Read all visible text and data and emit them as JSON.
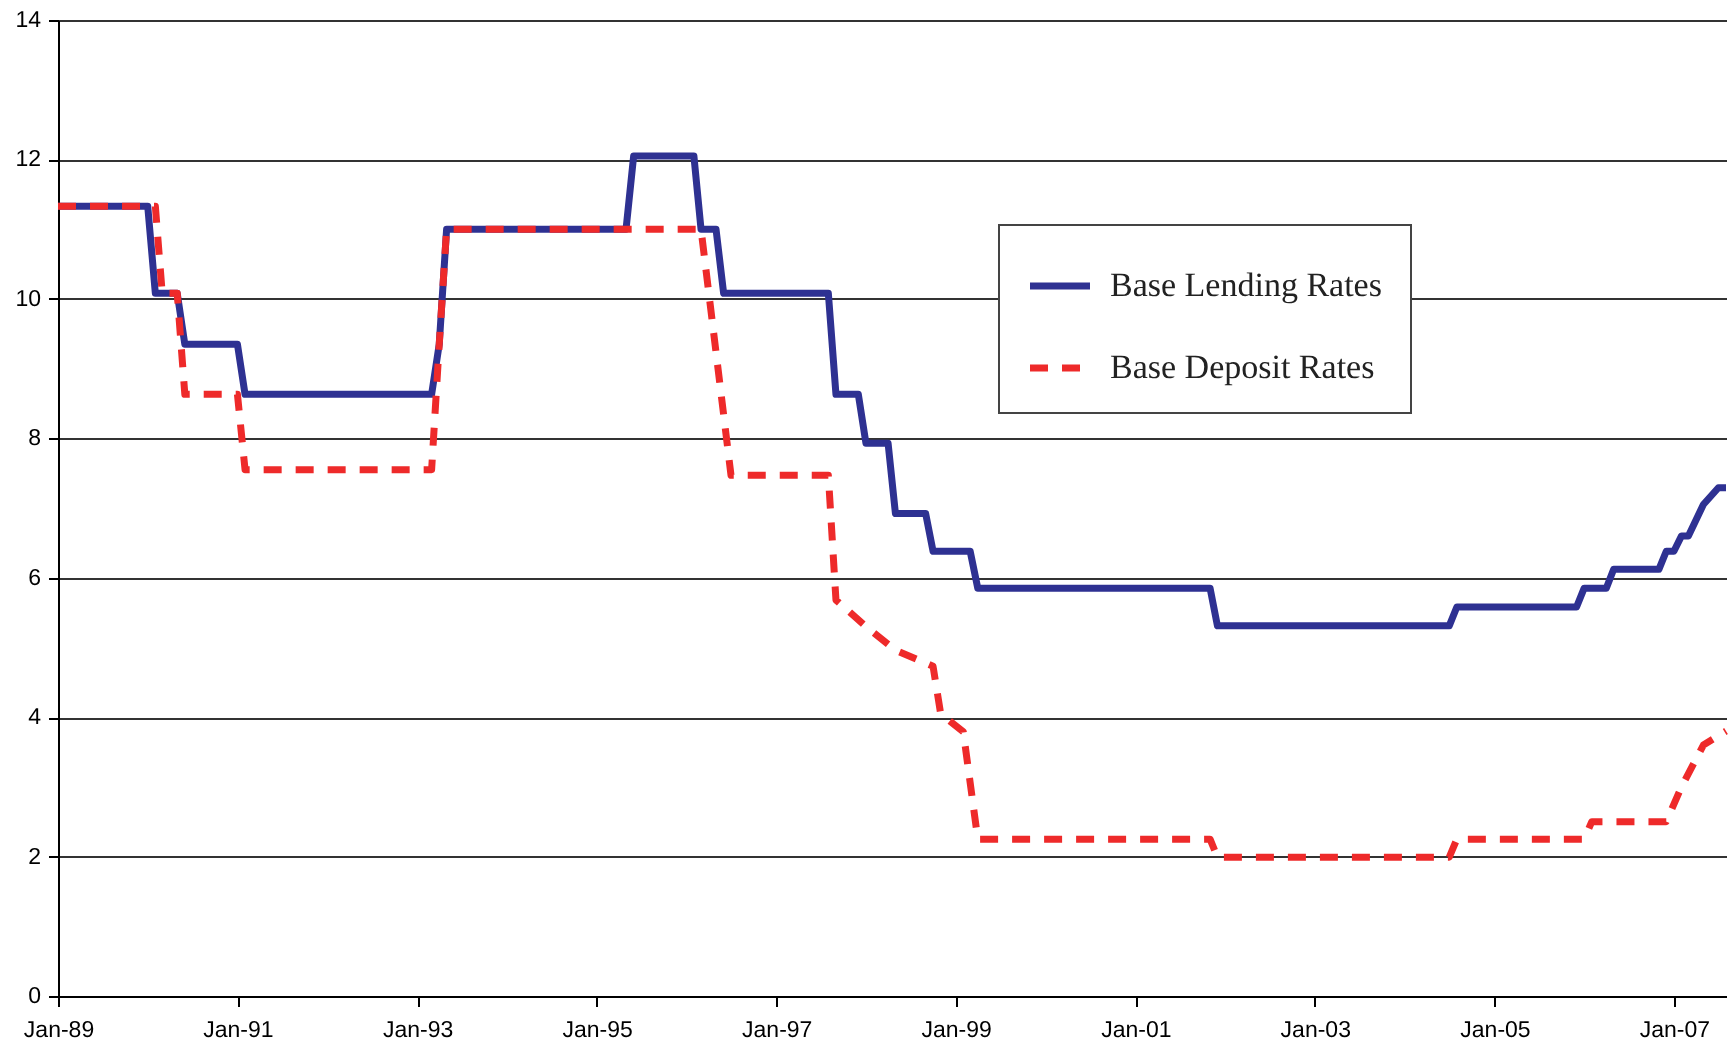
{
  "chart_data": {
    "type": "line",
    "xlim": [
      "1989-01",
      "2007-08"
    ],
    "xticks": [
      {
        "value": "1989-01",
        "label": "Jan-89"
      },
      {
        "value": "1991-01",
        "label": "Jan-91"
      },
      {
        "value": "1993-01",
        "label": "Jan-93"
      },
      {
        "value": "1995-01",
        "label": "Jan-95"
      },
      {
        "value": "1997-01",
        "label": "Jan-97"
      },
      {
        "value": "1999-01",
        "label": "Jan-99"
      },
      {
        "value": "2001-01",
        "label": "Jan-01"
      },
      {
        "value": "2003-01",
        "label": "Jan-03"
      },
      {
        "value": "2005-01",
        "label": "Jan-05"
      },
      {
        "value": "2007-01",
        "label": "Jan-07"
      }
    ],
    "ylim": [
      0,
      14
    ],
    "yticks": [
      0,
      2,
      4,
      6,
      8,
      10,
      12,
      14
    ],
    "grid": "y",
    "legend": "top right",
    "marker": "none",
    "series": [
      {
        "name": "Base Lending Rates",
        "color": "#2e3192",
        "line_style": "solid",
        "x": [
          "1989-01",
          "1990-01",
          "1990-02",
          "1990-05",
          "1990-06",
          "1991-01",
          "1991-02",
          "1993-03",
          "1993-04",
          "1993-05",
          "1995-05",
          "1995-06",
          "1996-02",
          "1996-03",
          "1996-05",
          "1996-06",
          "1997-08",
          "1997-09",
          "1997-12",
          "1998-01",
          "1998-04",
          "1998-05",
          "1998-09",
          "1998-10",
          "1999-03",
          "1999-04",
          "2001-11",
          "2001-12",
          "2004-07",
          "2004-08",
          "2005-12",
          "2006-01",
          "2006-04",
          "2006-05",
          "2006-11",
          "2006-12",
          "2007-01",
          "2007-02",
          "2007-03",
          "2007-05",
          "2007-07",
          "2007-08"
        ],
        "values": [
          11.33,
          11.33,
          10.08,
          10.08,
          9.35,
          9.35,
          8.63,
          8.63,
          9.35,
          11.0,
          11.0,
          12.05,
          12.05,
          11.0,
          11.0,
          10.08,
          10.08,
          8.63,
          8.63,
          7.93,
          7.93,
          6.92,
          6.92,
          6.38,
          6.38,
          5.85,
          5.85,
          5.31,
          5.31,
          5.58,
          5.58,
          5.85,
          5.85,
          6.12,
          6.12,
          6.38,
          6.38,
          6.6,
          6.6,
          7.05,
          7.29,
          7.29
        ]
      },
      {
        "name": "Base Deposit Rates",
        "color": "#ee2a2a",
        "line_style": "dashed",
        "x": [
          "1989-01",
          "1990-02",
          "1990-03",
          "1990-05",
          "1990-06",
          "1991-01",
          "1991-02",
          "1993-03",
          "1993-04",
          "1993-05",
          "1996-03",
          "1996-07",
          "1997-08",
          "1997-09",
          "1998-01",
          "1998-05",
          "1998-10",
          "1998-11",
          "1999-02",
          "1999-04",
          "2001-11",
          "2001-12",
          "2004-07",
          "2004-08",
          "2006-01",
          "2006-02",
          "2006-12",
          "2007-02",
          "2007-05",
          "2007-08"
        ],
        "values": [
          11.33,
          11.33,
          10.08,
          10.08,
          8.63,
          8.63,
          7.55,
          7.55,
          9.35,
          11.0,
          11.0,
          7.47,
          7.47,
          5.68,
          5.3,
          4.96,
          4.73,
          4.05,
          3.79,
          2.25,
          2.25,
          1.99,
          1.99,
          2.25,
          2.25,
          2.5,
          2.5,
          3.0,
          3.6,
          3.8
        ]
      }
    ]
  }
}
